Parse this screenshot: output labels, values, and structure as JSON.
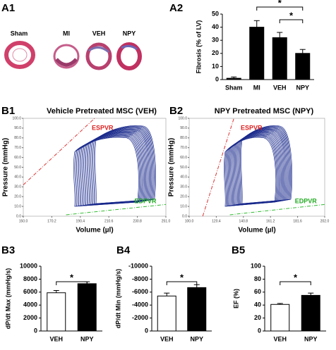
{
  "panel_labels": [
    "A1",
    "A2",
    "B1",
    "B2",
    "B3",
    "B4",
    "B5"
  ],
  "A1": {
    "labels": [
      "Sham",
      "MI",
      "VEH",
      "NPY"
    ]
  },
  "chart_data": [
    {
      "type": "bar",
      "ylabel": "Fibrosis (% of LV)",
      "categories": [
        "Sham",
        "MI",
        "VEH",
        "NPY"
      ],
      "values": [
        1,
        40,
        32,
        20
      ],
      "errors": [
        1,
        5,
        4,
        3
      ],
      "colors": [
        "#000000",
        "#000000",
        "#000000",
        "#000000"
      ],
      "ylim": [
        0,
        50
      ],
      "yticks": [
        0,
        10,
        20,
        30,
        40,
        50
      ],
      "significance_labels": [
        "*",
        "*"
      ]
    },
    {
      "type": "pv-loop",
      "title": "Vehicle Pretreated MSC (VEH)",
      "xlabel": "Volume (µl)",
      "ylabel": "Pressure (mmHg)",
      "annotations": [
        "ESPVR",
        "EDPVR"
      ],
      "xlim": [
        150,
        251
      ],
      "xticks": [
        {
          "value": 150,
          "label": "150.0"
        },
        {
          "value": 170.2,
          "label": "170.2"
        },
        {
          "value": 190.4,
          "label": "190.4"
        },
        {
          "value": 210.6,
          "label": "210.6"
        },
        {
          "value": 230.8,
          "label": "230.8"
        },
        {
          "value": 251,
          "label": "251.0"
        }
      ],
      "ylim": [
        0,
        100
      ],
      "yticks": [
        {
          "value": 0,
          "label": "0.0"
        },
        {
          "value": 10,
          "label": "10.0"
        },
        {
          "value": 20,
          "label": "20.0"
        },
        {
          "value": 30,
          "label": "30.0"
        },
        {
          "value": 40,
          "label": "40.0"
        },
        {
          "value": 50,
          "label": "50.0"
        },
        {
          "value": 60,
          "label": "60.0"
        },
        {
          "value": 70,
          "label": "70.0"
        },
        {
          "value": 80,
          "label": "80.0"
        },
        {
          "value": 90,
          "label": "90.0"
        },
        {
          "value": 100,
          "label": "100.0"
        }
      ]
    },
    {
      "type": "pv-loop",
      "title": "NPY Pretreated MSC (NPY)",
      "xlabel": "Volume (µl)",
      "ylabel": "Pressure (mmHg)",
      "annotations": [
        "ESPVR",
        "EDPVR"
      ],
      "xlim": [
        100,
        202
      ],
      "xticks": [
        {
          "value": 100,
          "label": "100.0"
        },
        {
          "value": 120.4,
          "label": "120.4"
        },
        {
          "value": 140.8,
          "label": "140.8"
        },
        {
          "value": 161.2,
          "label": "161.2"
        },
        {
          "value": 181.6,
          "label": "181.6"
        },
        {
          "value": 202,
          "label": "202.0"
        }
      ],
      "ylim": [
        0,
        100
      ],
      "yticks": [
        {
          "value": 0,
          "label": "0.0"
        },
        {
          "value": 10,
          "label": "10.0"
        },
        {
          "value": 20,
          "label": "20.0"
        },
        {
          "value": 30,
          "label": "30.0"
        },
        {
          "value": 40,
          "label": "40.0"
        },
        {
          "value": 50,
          "label": "50.0"
        },
        {
          "value": 60,
          "label": "60.0"
        },
        {
          "value": 70,
          "label": "70.0"
        },
        {
          "value": 80,
          "label": "80.0"
        },
        {
          "value": 90,
          "label": "90.0"
        },
        {
          "value": 100,
          "label": "100.0"
        }
      ]
    },
    {
      "type": "bar",
      "ylabel": "dP/dt Max (mmHg/s)",
      "categories": [
        "VEH",
        "NPY"
      ],
      "values": [
        5900,
        7300
      ],
      "errors": [
        350,
        300
      ],
      "colors": [
        "#ffffff",
        "#000000"
      ],
      "ylim": [
        0,
        10000
      ],
      "yticks": [
        0,
        2000,
        4000,
        6000,
        8000,
        10000
      ],
      "significance_labels": [
        "*"
      ]
    },
    {
      "type": "bar",
      "ylabel": "dP/dt Min (mmHg/s)",
      "categories": [
        "VEH",
        "NPY"
      ],
      "values": [
        -5400,
        -6700
      ],
      "errors": [
        450,
        450
      ],
      "colors": [
        "#ffffff",
        "#000000"
      ],
      "ylim": [
        0,
        -10000
      ],
      "yticks": [
        0,
        -2000,
        -4000,
        -6000,
        -8000,
        -10000
      ],
      "significance_labels": [
        "*"
      ]
    },
    {
      "type": "bar",
      "ylabel": "EF (%)",
      "categories": [
        "VEH",
        "NPY"
      ],
      "values": [
        41,
        55
      ],
      "errors": [
        1.5,
        3.5
      ],
      "colors": [
        "#ffffff",
        "#000000"
      ],
      "ylim": [
        0,
        100
      ],
      "yticks": [
        0,
        20,
        40,
        60,
        80,
        100
      ],
      "significance_labels": [
        "*"
      ]
    }
  ]
}
